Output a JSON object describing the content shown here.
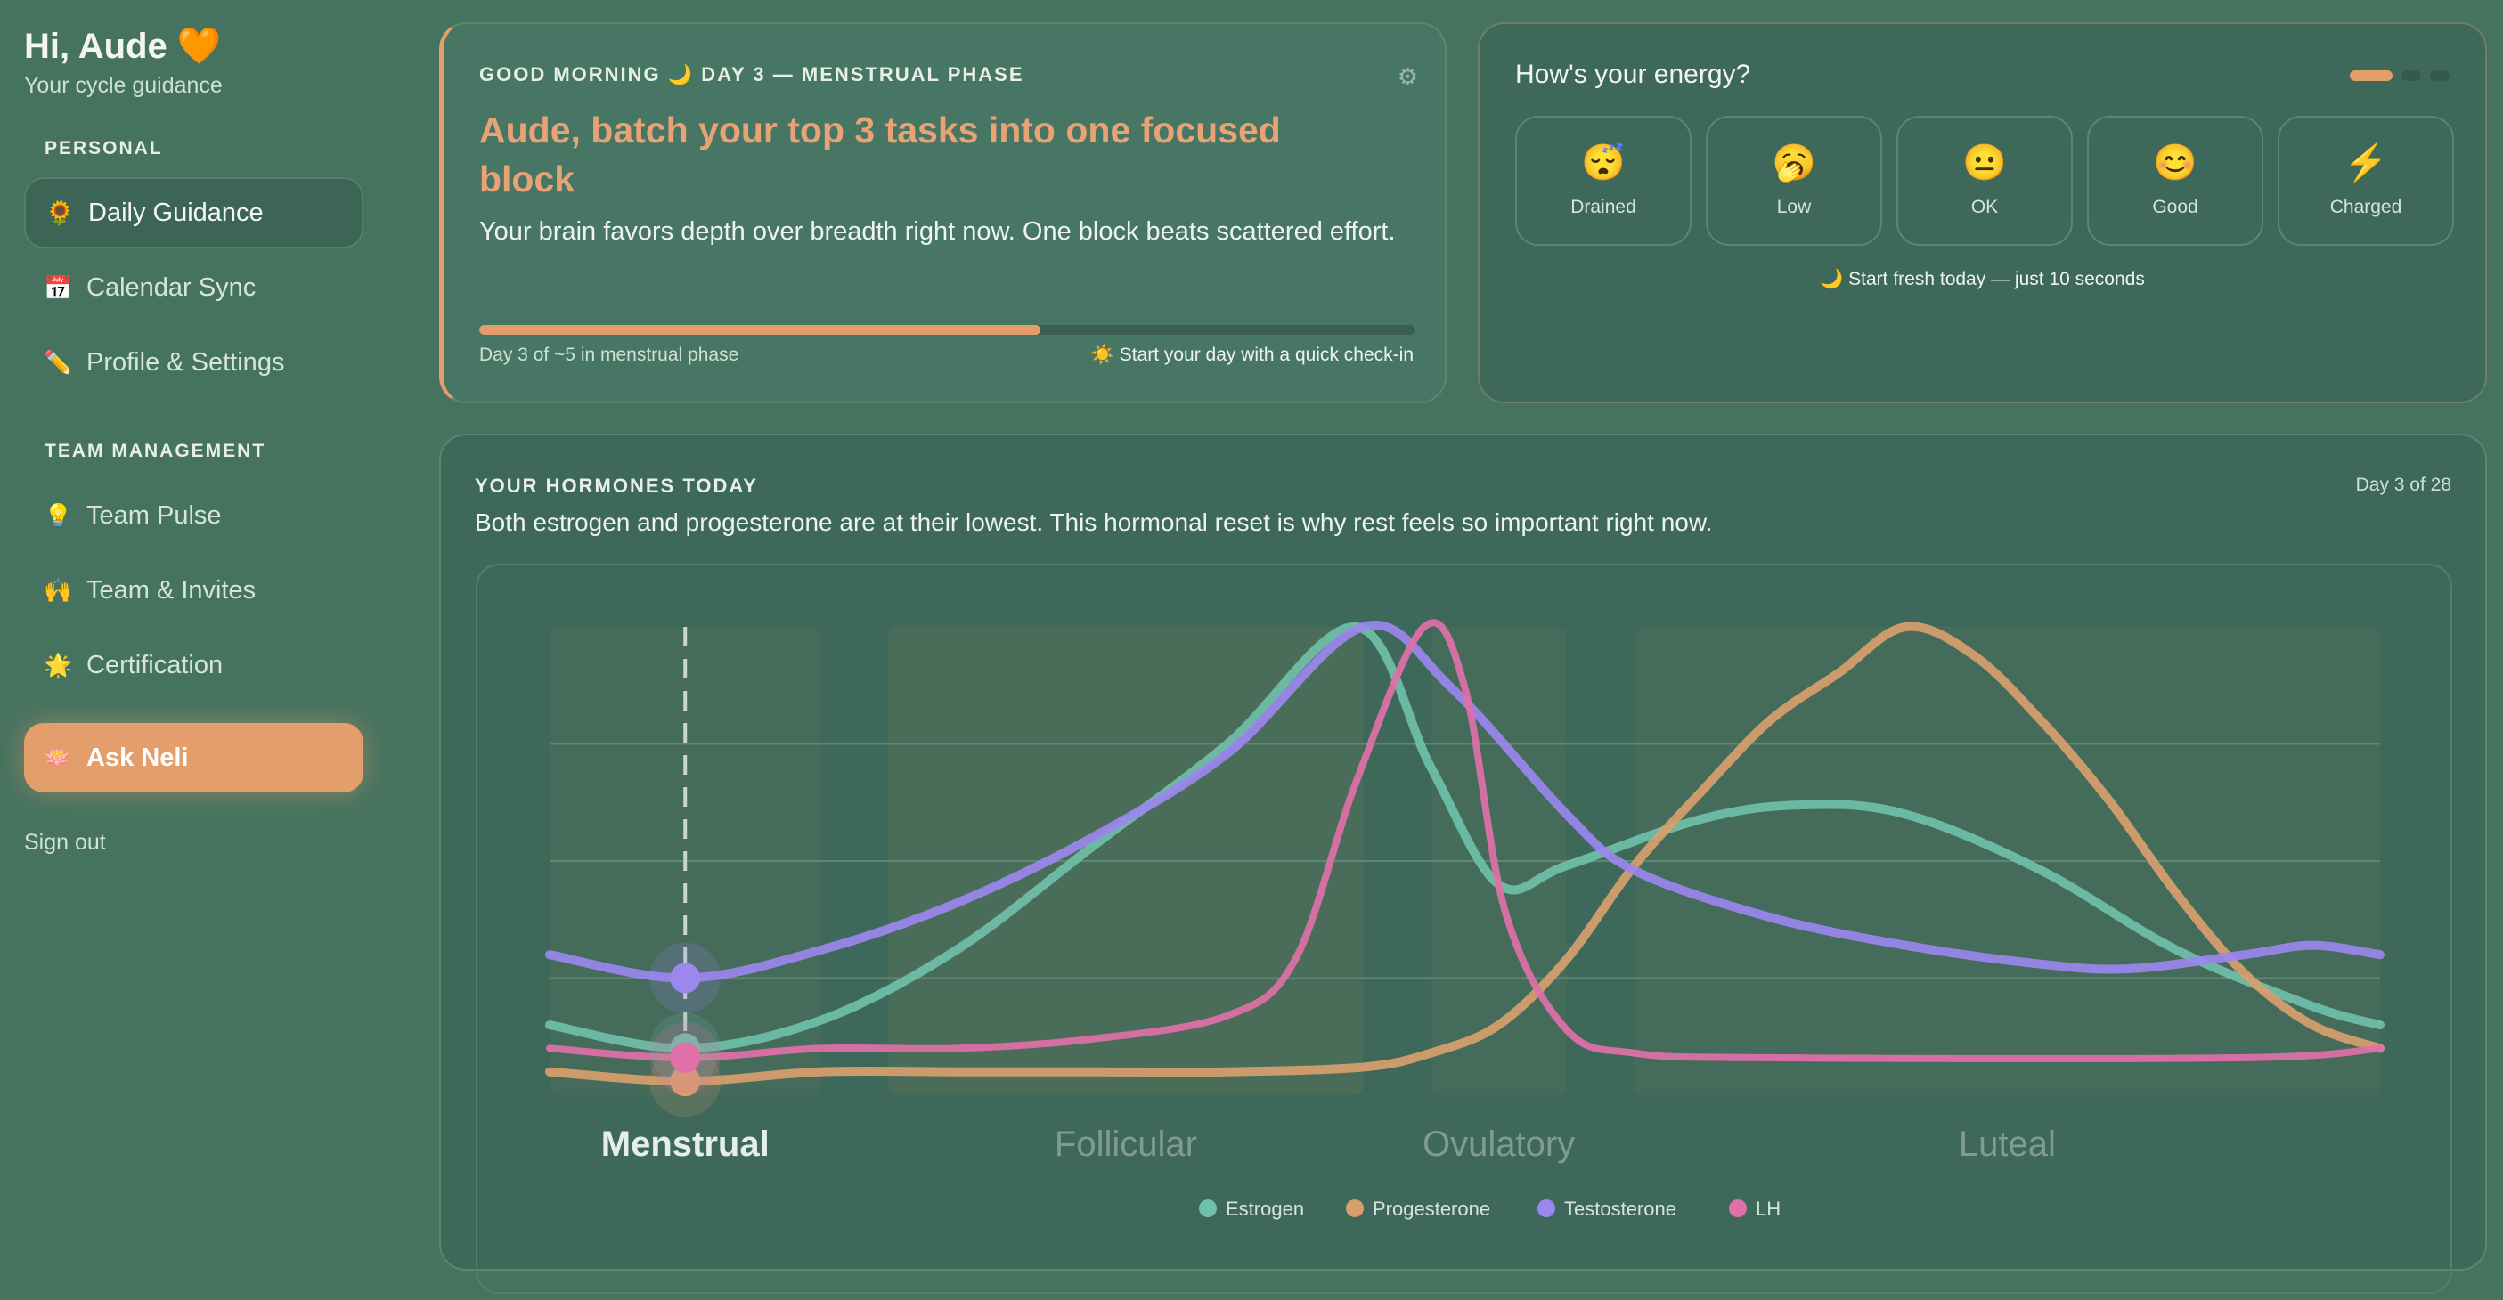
{
  "sidebar": {
    "greeting": "Hi, Aude 🧡",
    "subtitle": "Your cycle guidance",
    "sections": [
      {
        "label": "PERSONAL",
        "items": [
          {
            "icon": "🌻",
            "icon_name": "sunflower-icon",
            "label": "Daily Guidance",
            "active": true
          },
          {
            "icon": "📅",
            "icon_name": "calendar-icon",
            "label": "Calendar Sync"
          },
          {
            "icon": "✏️",
            "icon_name": "pencil-icon",
            "label": "Profile & Settings"
          }
        ]
      },
      {
        "label": "TEAM MANAGEMENT",
        "items": [
          {
            "icon": "💡",
            "icon_name": "lightbulb-icon",
            "label": "Team Pulse"
          },
          {
            "icon": "🙌",
            "icon_name": "raised-hands-icon",
            "label": "Team & Invites"
          },
          {
            "icon": "🌟",
            "icon_name": "star-icon",
            "label": "Certification"
          }
        ]
      }
    ],
    "ask": {
      "icon": "🪷",
      "label": "Ask Neli"
    },
    "signout": "Sign out"
  },
  "guidance": {
    "eyebrow": "GOOD MORNING 🌙 DAY 3 — MENSTRUAL PHASE",
    "headline": "Aude, batch your top 3 tasks into one focused block",
    "body": "Your brain favors depth over breadth right now. One block beats scattered effort.",
    "progress_pct": 60,
    "progress_label": "Day 3 of ~5 in menstrual phase",
    "checkin": "☀️ Start your day with a quick check-in",
    "gear_icon": "⚙"
  },
  "energy": {
    "title": "How's your energy?",
    "step": 1,
    "steps": 3,
    "options": [
      {
        "emoji": "😴",
        "label": "Drained"
      },
      {
        "emoji": "🥱",
        "label": "Low"
      },
      {
        "emoji": "😐",
        "label": "OK"
      },
      {
        "emoji": "😊",
        "label": "Good"
      },
      {
        "emoji": "⚡",
        "label": "Charged"
      }
    ],
    "footer": "🌙 Start fresh today — just 10 seconds"
  },
  "hormones": {
    "title": "YOUR HORMONES TODAY",
    "day_label": "Day 3 of 28",
    "description": "Both estrogen and progesterone are at their lowest. This hormonal reset is why rest feels so important right now."
  },
  "colors": {
    "accent": "#e39e6c",
    "estrogen": "#6fbfa9",
    "progesterone": "#d79f6e",
    "testosterone": "#9b87ee",
    "lh": "#e070a8"
  },
  "chart_data": {
    "type": "line",
    "xlim": [
      1,
      28
    ],
    "ylim": [
      0,
      100
    ],
    "grid": true,
    "legend": "bottom",
    "current_day": 3,
    "phases": [
      {
        "name": "Menstrual",
        "range": [
          1,
          5
        ],
        "active": true
      },
      {
        "name": "Follicular",
        "range": [
          6,
          13
        ]
      },
      {
        "name": "Ovulatory",
        "range": [
          14,
          16
        ]
      },
      {
        "name": "Luteal",
        "range": [
          17,
          28
        ]
      }
    ],
    "series": [
      {
        "name": "Estrogen",
        "color": "#6fbfa9",
        "points": [
          [
            1,
            15
          ],
          [
            3,
            10
          ],
          [
            5,
            16
          ],
          [
            7,
            31
          ],
          [
            9,
            53
          ],
          [
            11,
            75
          ],
          [
            12.9,
            100
          ],
          [
            14,
            70
          ],
          [
            15,
            45
          ],
          [
            16,
            49
          ],
          [
            18,
            59
          ],
          [
            19.5,
            62
          ],
          [
            21,
            60
          ],
          [
            23,
            48
          ],
          [
            25,
            31
          ],
          [
            27,
            19
          ],
          [
            28,
            15
          ]
        ]
      },
      {
        "name": "Progesterone",
        "color": "#d79f6e",
        "points": [
          [
            1,
            5
          ],
          [
            3,
            3
          ],
          [
            5,
            5
          ],
          [
            7,
            5
          ],
          [
            9,
            5
          ],
          [
            11,
            5
          ],
          [
            13,
            6
          ],
          [
            14,
            9
          ],
          [
            15,
            15
          ],
          [
            16,
            29
          ],
          [
            17,
            49
          ],
          [
            18,
            65
          ],
          [
            19,
            80
          ],
          [
            20,
            90
          ],
          [
            21,
            100
          ],
          [
            22,
            94
          ],
          [
            23,
            80
          ],
          [
            24,
            63
          ],
          [
            25,
            43
          ],
          [
            26,
            26
          ],
          [
            27,
            15
          ],
          [
            28,
            10
          ]
        ]
      },
      {
        "name": "Testosterone",
        "color": "#9b87ee",
        "points": [
          [
            1,
            30
          ],
          [
            3,
            25
          ],
          [
            5,
            31
          ],
          [
            7,
            41
          ],
          [
            9,
            55
          ],
          [
            11,
            73
          ],
          [
            13,
            100
          ],
          [
            14.3,
            87
          ],
          [
            16,
            60
          ],
          [
            17,
            48
          ],
          [
            19,
            38
          ],
          [
            21,
            32
          ],
          [
            23,
            28
          ],
          [
            24.3,
            27
          ],
          [
            26,
            30
          ],
          [
            27,
            32
          ],
          [
            28,
            30
          ]
        ]
      },
      {
        "name": "LH",
        "color": "#e070a8",
        "points": [
          [
            1,
            10
          ],
          [
            3,
            8
          ],
          [
            5,
            10
          ],
          [
            7,
            10
          ],
          [
            9,
            12
          ],
          [
            11,
            17
          ],
          [
            12,
            29
          ],
          [
            12.9,
            67
          ],
          [
            13.9,
            100
          ],
          [
            14.5,
            87
          ],
          [
            15.1,
            39
          ],
          [
            16,
            14
          ],
          [
            17,
            9
          ],
          [
            19,
            8
          ],
          [
            26,
            8
          ],
          [
            28,
            10
          ]
        ]
      }
    ]
  }
}
